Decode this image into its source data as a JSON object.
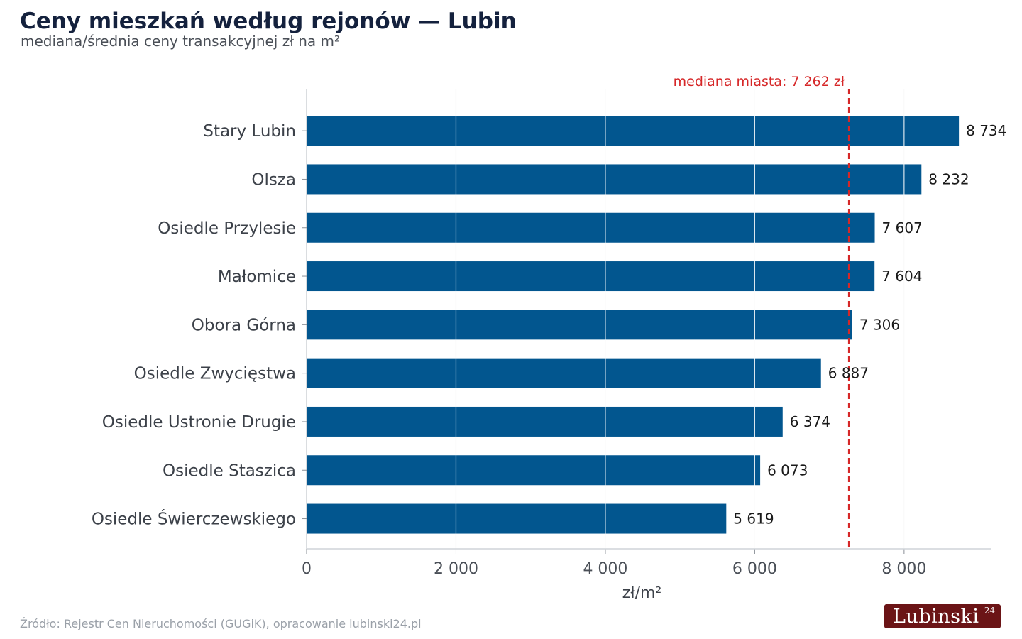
{
  "title": "Ceny mieszkań według rejonów — Lubin",
  "subtitle": "mediana/średnia ceny transakcyjnej zł na m²",
  "source": "Źródło: Rejestr Cen Nieruchomości (GUGiK), opracowanie lubinski24.pl",
  "logo": {
    "text": "Lubinski",
    "sup": "24"
  },
  "colors": {
    "bar": "#02568f",
    "median_line": "#d62728",
    "title": "#14213d",
    "grid": "#e6e6e6"
  },
  "chart_data": {
    "type": "bar",
    "orientation": "horizontal",
    "categories": [
      "Stary Lubin",
      "Olsza",
      "Osiedle Przylesie",
      "Małomice",
      "Obora Górna",
      "Osiedle Zwycięstwa",
      "Osiedle Ustronie Drugie",
      "Osiedle Staszica",
      "Osiedle Świerczewskiego"
    ],
    "values": [
      8734,
      8232,
      7607,
      7604,
      7306,
      6887,
      6374,
      6073,
      5619
    ],
    "value_labels": [
      "8 734",
      "8 232",
      "7 607",
      "7 604",
      "7 306",
      "6 887",
      "6 374",
      "6 073",
      "5 619"
    ],
    "xlabel": "zł/m²",
    "xlim": [
      0,
      9170
    ],
    "xticks": [
      0,
      2000,
      4000,
      6000,
      8000
    ],
    "xtick_labels": [
      "0",
      "2 000",
      "4 000",
      "6 000",
      "8 000"
    ],
    "grid": true,
    "reference_line": {
      "value": 7262,
      "label": "mediana miasta: 7 262 zł",
      "style": "dashed"
    }
  }
}
